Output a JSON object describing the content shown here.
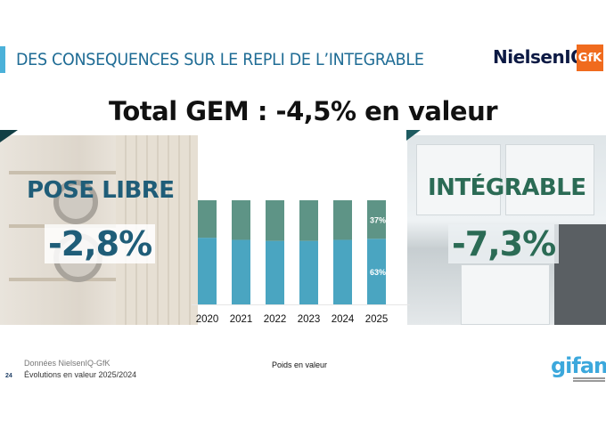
{
  "header": {
    "title": "DES CONSEQUENCES SUR LE REPLI DE L’INTEGRABLE",
    "logos": {
      "nielsen": "NielsenIQ",
      "gfk": "GfK"
    }
  },
  "headline": "Total GEM : -4,5% en valeur",
  "segments": {
    "pose_libre": {
      "name": "POSE LIBRE",
      "value": "-2,8%"
    },
    "integrable": {
      "name": "INTÉGRABLE",
      "value": "-7,3%"
    }
  },
  "colors": {
    "pose_libre": "#4aa5c1",
    "integrable": "#5e9486",
    "title": "#1f6c95"
  },
  "chart_data": {
    "type": "bar",
    "stacked": true,
    "categories": [
      "2020",
      "2021",
      "2022",
      "2023",
      "2024",
      "2025"
    ],
    "series": [
      {
        "values": [
          64,
          62,
          61,
          61,
          62,
          63
        ],
        "color": "#4aa5c1"
      },
      {
        "values": [
          36,
          38,
          39,
          39,
          38,
          37
        ],
        "color": "#5e9486"
      }
    ],
    "data_labels": {
      "2025": [
        "63%",
        "37%"
      ]
    },
    "ylim": [
      0,
      100
    ],
    "caption": "Poids en valeur"
  },
  "footer": {
    "source": "Données NielsenIQ-GfK",
    "note": "Évolutions en valeur 2025/2024",
    "page": "24",
    "logo": "gifam"
  }
}
